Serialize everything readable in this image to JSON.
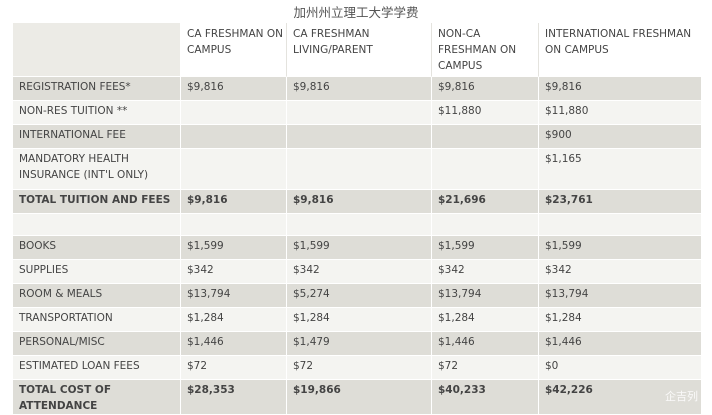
{
  "title": "加州州立理工大学学费",
  "columns": [
    "CA FRESHMAN ON CAMPUS",
    "CA FRESHMAN LIVING/PARENT",
    "NON-CA FRESHMAN ON CAMPUS",
    "INTERNATIONAL FRESHMAN ON CAMPUS"
  ],
  "rows": [
    {
      "label": "REGISTRATION FEES*",
      "values": [
        "$9,816",
        "$9,816",
        "$9,816",
        "$9,816"
      ]
    },
    {
      "label": "NON-RES TUITION **",
      "values": [
        "",
        "",
        "$11,880",
        "$11,880"
      ]
    },
    {
      "label": "INTERNATIONAL FEE",
      "values": [
        "",
        "",
        "",
        "$900"
      ]
    },
    {
      "label": "MANDATORY HEALTH INSURANCE (INT'L ONLY)",
      "values": [
        "",
        "",
        "",
        "$1,165"
      ]
    },
    {
      "label": "TOTAL TUITION AND FEES",
      "values": [
        "$9,816",
        "$9,816",
        "$21,696",
        "$23,761"
      ]
    },
    {
      "label": "",
      "values": [
        "",
        "",
        "",
        ""
      ]
    },
    {
      "label": "BOOKS",
      "values": [
        "$1,599",
        "$1,599",
        "$1,599",
        "$1,599"
      ]
    },
    {
      "label": "SUPPLIES",
      "values": [
        "$342",
        "$342",
        "$342",
        "$342"
      ]
    },
    {
      "label": "ROOM & MEALS",
      "values": [
        "$13,794",
        "$5,274",
        "$13,794",
        "$13,794"
      ]
    },
    {
      "label": "TRANSPORTATION",
      "values": [
        "$1,284",
        "$1,284",
        "$1,284",
        "$1,284"
      ]
    },
    {
      "label": "PERSONAL/MISC",
      "values": [
        "$1,446",
        "$1,479",
        "$1,446",
        "$1,446"
      ]
    },
    {
      "label": "ESTIMATED LOAN FEES",
      "values": [
        "$72",
        "$72",
        "$72",
        "$0"
      ]
    },
    {
      "label": "TOTAL COST OF ATTENDANCE",
      "values": [
        "$28,353",
        "$19,866",
        "$40,233",
        "$42,226"
      ]
    }
  ],
  "watermark": "企吉列"
}
